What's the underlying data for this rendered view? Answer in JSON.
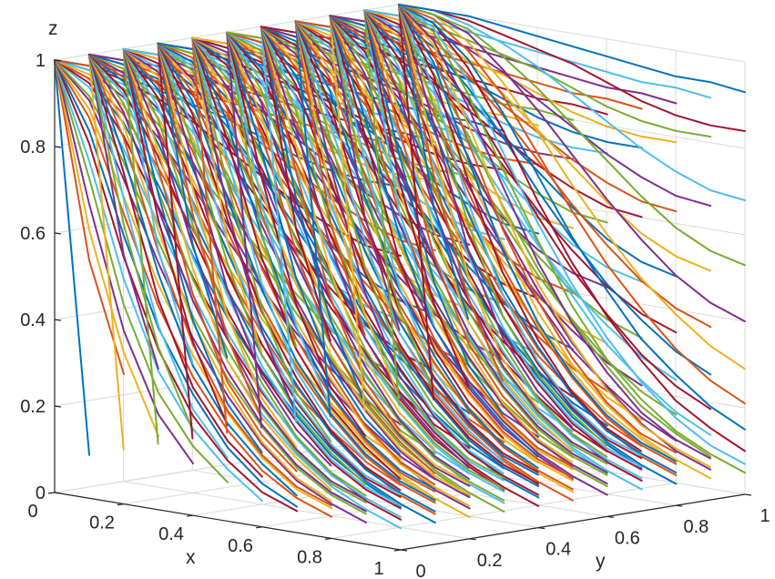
{
  "chart_data": {
    "type": "line",
    "title": "",
    "xlabel": "x",
    "ylabel": "y",
    "zlabel": "z",
    "xlim": [
      0,
      1
    ],
    "ylim": [
      0,
      1
    ],
    "zlim": [
      0,
      1
    ],
    "x_ticks": [
      "0",
      "0.2",
      "0.4",
      "0.6",
      "0.8",
      "1"
    ],
    "y_ticks": [
      "0",
      "0.2",
      "0.4",
      "0.6",
      "0.8",
      "1"
    ],
    "z_ticks": [
      "0",
      "0.2",
      "0.4",
      "0.6",
      "0.8",
      "1"
    ],
    "grid": true,
    "colors": [
      "#0072BD",
      "#D95319",
      "#EDB120",
      "#7E2F8E",
      "#77AC30",
      "#4DBEEE",
      "#A2142F"
    ],
    "series": [
      {
        "x": [
          0,
          0.1
        ],
        "z": [
          1,
          0.1
        ]
      },
      {
        "x": [
          0,
          0.1,
          0.2
        ],
        "z": [
          1,
          0.55,
          0.3
        ]
      },
      {
        "x": [
          0,
          0.1,
          0.2,
          0.3
        ],
        "z": [
          1,
          0.62,
          0.35,
          0.17
        ]
      },
      {
        "x": [
          0,
          0.1,
          0.2,
          0.3,
          0.4
        ],
        "z": [
          1,
          0.68,
          0.4,
          0.22,
          0.12
        ]
      },
      {
        "x": [
          0,
          0.1,
          0.2,
          0.3,
          0.4,
          0.5
        ],
        "z": [
          1,
          0.74,
          0.46,
          0.27,
          0.16,
          0.09
        ]
      },
      {
        "x": [
          0,
          0.1,
          0.2,
          0.3,
          0.4,
          0.5,
          0.6
        ],
        "z": [
          1,
          0.78,
          0.52,
          0.32,
          0.2,
          0.12,
          0.06
        ]
      },
      {
        "x": [
          0,
          0.1,
          0.2,
          0.3,
          0.4,
          0.5,
          0.6,
          0.7
        ],
        "z": [
          1,
          0.82,
          0.57,
          0.37,
          0.23,
          0.14,
          0.08,
          0.05
        ]
      },
      {
        "x": [
          0,
          0.1,
          0.2,
          0.3,
          0.4,
          0.5,
          0.6,
          0.7
        ],
        "z": [
          1,
          0.85,
          0.62,
          0.42,
          0.28,
          0.17,
          0.1,
          0.06
        ]
      },
      {
        "x": [
          0,
          0.1,
          0.2,
          0.3,
          0.4,
          0.5,
          0.6,
          0.7,
          0.8
        ],
        "z": [
          1,
          0.88,
          0.67,
          0.47,
          0.32,
          0.21,
          0.13,
          0.08,
          0.05
        ]
      },
      {
        "x": [
          0,
          0.1,
          0.2,
          0.3,
          0.4,
          0.5,
          0.6,
          0.7,
          0.8
        ],
        "z": [
          1,
          0.9,
          0.71,
          0.52,
          0.37,
          0.25,
          0.16,
          0.1,
          0.07
        ]
      },
      {
        "x": [
          0,
          0.1,
          0.2,
          0.3,
          0.4,
          0.5,
          0.6,
          0.7,
          0.8,
          0.9
        ],
        "z": [
          1,
          0.92,
          0.75,
          0.57,
          0.41,
          0.29,
          0.19,
          0.12,
          0.08,
          0.05
        ]
      },
      {
        "x": [
          0,
          0.1,
          0.2,
          0.3,
          0.4,
          0.5,
          0.6,
          0.7,
          0.8,
          0.9
        ],
        "z": [
          1,
          0.93,
          0.79,
          0.62,
          0.46,
          0.33,
          0.23,
          0.15,
          0.1,
          0.07
        ]
      },
      {
        "x": [
          0,
          0.1,
          0.2,
          0.3,
          0.4,
          0.5,
          0.6,
          0.7,
          0.8,
          0.9,
          1.0
        ],
        "z": [
          1,
          0.95,
          0.82,
          0.66,
          0.51,
          0.37,
          0.26,
          0.18,
          0.12,
          0.08,
          0.05
        ]
      },
      {
        "x": [
          0,
          0.1,
          0.2,
          0.3,
          0.4,
          0.5,
          0.6,
          0.7,
          0.8,
          0.9,
          1.0
        ],
        "z": [
          1,
          0.96,
          0.85,
          0.7,
          0.55,
          0.42,
          0.31,
          0.22,
          0.15,
          0.1,
          0.07
        ]
      },
      {
        "x": [
          0,
          0.1,
          0.2,
          0.3,
          0.4,
          0.5,
          0.6,
          0.7,
          0.8,
          0.9,
          1.0
        ],
        "z": [
          1,
          0.97,
          0.88,
          0.75,
          0.6,
          0.47,
          0.36,
          0.27,
          0.19,
          0.14,
          0.1
        ]
      },
      {
        "x": [
          0,
          0.1,
          0.2,
          0.3,
          0.4,
          0.5,
          0.6,
          0.7,
          0.8,
          0.9,
          1.0
        ],
        "z": [
          1,
          0.97,
          0.9,
          0.79,
          0.66,
          0.53,
          0.42,
          0.32,
          0.25,
          0.19,
          0.15
        ]
      },
      {
        "x": [
          0,
          0.1,
          0.2,
          0.3,
          0.4,
          0.5,
          0.6,
          0.7,
          0.8,
          0.9,
          1.0
        ],
        "z": [
          1,
          0.98,
          0.92,
          0.83,
          0.71,
          0.59,
          0.48,
          0.39,
          0.31,
          0.25,
          0.21
        ]
      },
      {
        "x": [
          0,
          0.1,
          0.2,
          0.3,
          0.4,
          0.5,
          0.6,
          0.7,
          0.8,
          0.9,
          1.0
        ],
        "z": [
          1,
          0.99,
          0.94,
          0.86,
          0.76,
          0.65,
          0.55,
          0.46,
          0.39,
          0.33,
          0.29
        ]
      },
      {
        "x": [
          0,
          0.1,
          0.2,
          0.3,
          0.4,
          0.5,
          0.6,
          0.7,
          0.8,
          0.9,
          1.0
        ],
        "z": [
          1,
          0.99,
          0.96,
          0.89,
          0.81,
          0.72,
          0.63,
          0.55,
          0.48,
          0.43,
          0.4
        ]
      },
      {
        "x": [
          0,
          0.1,
          0.2,
          0.3,
          0.4,
          0.5,
          0.6,
          0.7,
          0.8,
          0.9,
          1.0
        ],
        "z": [
          1,
          0.99,
          0.97,
          0.92,
          0.86,
          0.79,
          0.72,
          0.65,
          0.59,
          0.55,
          0.53
        ]
      },
      {
        "x": [
          0,
          0.1,
          0.2,
          0.3,
          0.4,
          0.5,
          0.6,
          0.7,
          0.8,
          0.9,
          1.0
        ],
        "z": [
          1,
          1.0,
          0.98,
          0.95,
          0.91,
          0.86,
          0.81,
          0.76,
          0.72,
          0.69,
          0.68
        ]
      },
      {
        "x": [
          0,
          0.1,
          0.2,
          0.3,
          0.4,
          0.5,
          0.6,
          0.7,
          0.8,
          0.9,
          1.0
        ],
        "z": [
          1,
          1.0,
          0.99,
          0.97,
          0.95,
          0.93,
          0.9,
          0.87,
          0.85,
          0.84,
          0.84
        ]
      },
      {
        "x": [
          0,
          0.1,
          0.2,
          0.3,
          0.4,
          0.5,
          0.6,
          0.7,
          0.8,
          0.9,
          1.0
        ],
        "z": [
          1,
          1.0,
          1.0,
          0.99,
          0.98,
          0.97,
          0.96,
          0.95,
          0.94,
          0.94,
          0.93
        ]
      }
    ]
  }
}
